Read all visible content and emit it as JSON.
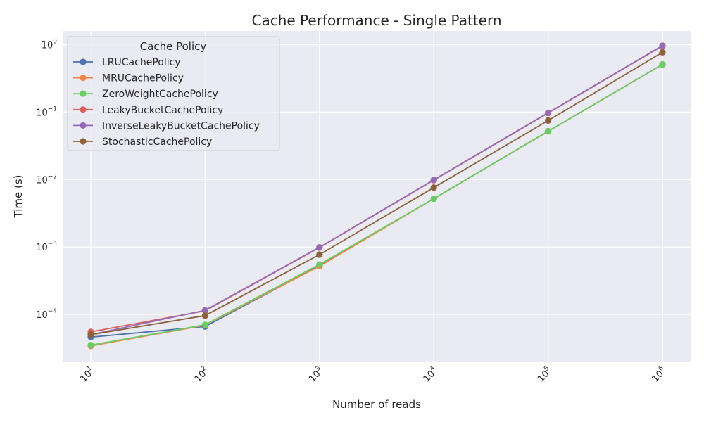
{
  "chart_data": {
    "type": "line",
    "title": "Cache Performance - Single Pattern",
    "xlabel": "Number of reads",
    "ylabel": "Time (s)",
    "xscale": "log",
    "yscale": "log",
    "x": [
      10,
      100,
      1000,
      10000,
      100000,
      1000000
    ],
    "x_tick_labels": [
      {
        "base": "10",
        "exp": "1"
      },
      {
        "base": "10",
        "exp": "2"
      },
      {
        "base": "10",
        "exp": "3"
      },
      {
        "base": "10",
        "exp": "4"
      },
      {
        "base": "10",
        "exp": "5"
      },
      {
        "base": "10",
        "exp": "6"
      }
    ],
    "y_ticks": [
      0.0001,
      0.001,
      0.01,
      0.1,
      1
    ],
    "y_tick_labels": [
      {
        "base": "10",
        "exp": "−4"
      },
      {
        "base": "10",
        "exp": "−3"
      },
      {
        "base": "10",
        "exp": "−2"
      },
      {
        "base": "10",
        "exp": "−1"
      },
      {
        "base": "10",
        "exp": "0"
      }
    ],
    "ylim": [
      2e-05,
      1.6
    ],
    "grid": true,
    "legend_title": "Cache Policy",
    "legend_position": "top-left",
    "series": [
      {
        "name": "LRUCachePolicy",
        "color": "#4c72b0",
        "values": [
          4.6e-05,
          6.6e-05,
          0.00053,
          0.0052,
          0.052,
          0.51
        ]
      },
      {
        "name": "MRUCachePolicy",
        "color": "#ee8549",
        "values": [
          3.4e-05,
          6.9e-05,
          0.00052,
          0.0052,
          0.052,
          0.51
        ]
      },
      {
        "name": "ZeroWeightCachePolicy",
        "color": "#6acc64",
        "values": [
          3.5e-05,
          7e-05,
          0.00055,
          0.0052,
          0.052,
          0.51
        ]
      },
      {
        "name": "LeakyBucketCachePolicy",
        "color": "#d65f5f",
        "values": [
          5.5e-05,
          0.000113,
          0.00098,
          0.0098,
          0.097,
          0.96
        ]
      },
      {
        "name": "InverseLeakyBucketCachePolicy",
        "color": "#956cb4",
        "values": [
          5e-05,
          0.000115,
          0.00099,
          0.0099,
          0.098,
          0.97
        ]
      },
      {
        "name": "StochasticCachePolicy",
        "color": "#8c613c",
        "values": [
          5e-05,
          9.6e-05,
          0.00077,
          0.0076,
          0.075,
          0.77
        ]
      }
    ]
  }
}
